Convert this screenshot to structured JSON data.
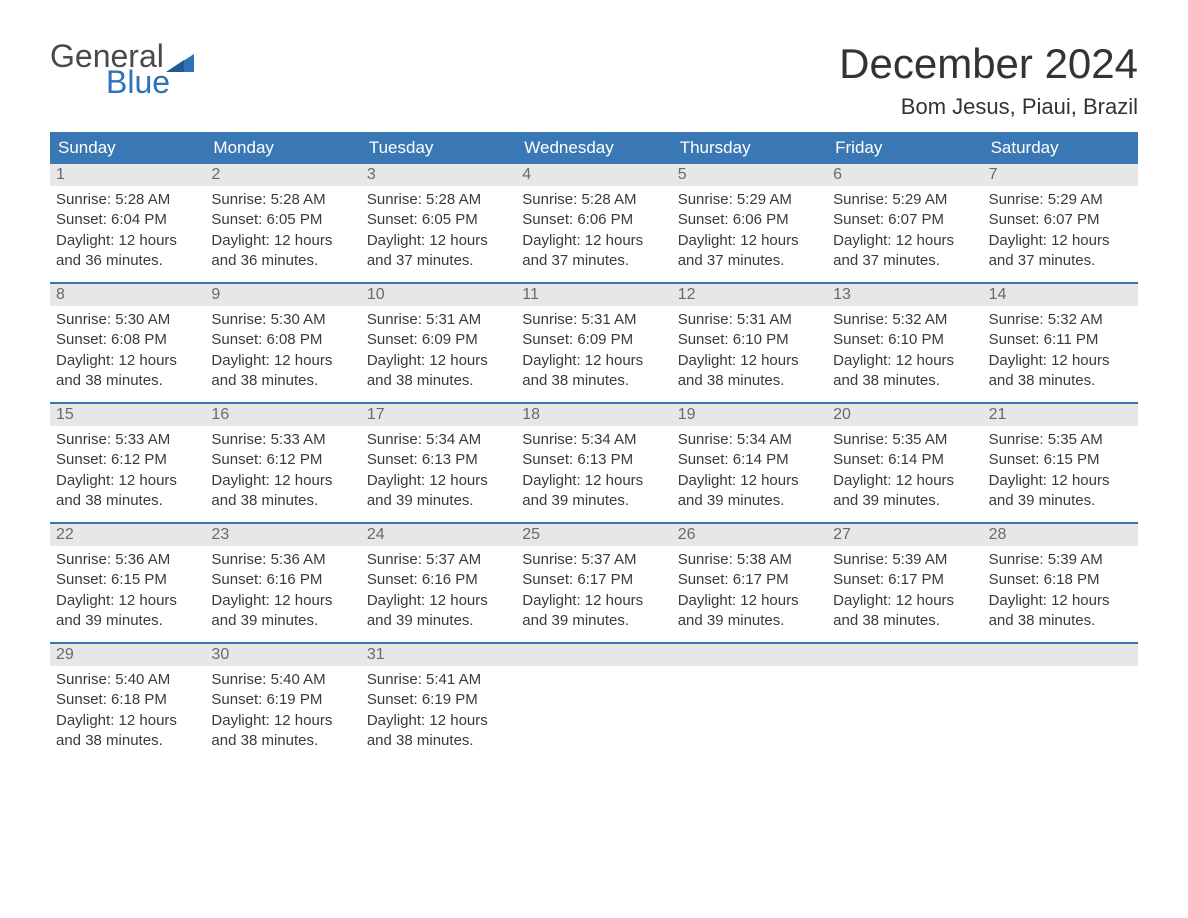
{
  "logo": {
    "general": "General",
    "blue": "Blue",
    "flag_color": "#2f72b8"
  },
  "title": "December 2024",
  "location": "Bom Jesus, Piaui, Brazil",
  "colors": {
    "header_bg": "#3a78b5",
    "header_text": "#ffffff",
    "daynum_bg": "#e7e7e7",
    "daynum_text": "#6a6a6a",
    "body_text": "#3a3a3a",
    "week_divider": "#3a78b5",
    "page_bg": "#ffffff",
    "logo_gray": "#4a4a4a",
    "logo_blue": "#2f72b8"
  },
  "fonts": {
    "title_size_pt": 32,
    "location_size_pt": 16,
    "weekday_size_pt": 13,
    "daynum_size_pt": 12,
    "cell_text_size_pt": 11
  },
  "weekdays": [
    "Sunday",
    "Monday",
    "Tuesday",
    "Wednesday",
    "Thursday",
    "Friday",
    "Saturday"
  ],
  "weeks": [
    [
      {
        "num": "1",
        "sunrise": "5:28 AM",
        "sunset": "6:04 PM",
        "daylight": "12 hours and 36 minutes."
      },
      {
        "num": "2",
        "sunrise": "5:28 AM",
        "sunset": "6:05 PM",
        "daylight": "12 hours and 36 minutes."
      },
      {
        "num": "3",
        "sunrise": "5:28 AM",
        "sunset": "6:05 PM",
        "daylight": "12 hours and 37 minutes."
      },
      {
        "num": "4",
        "sunrise": "5:28 AM",
        "sunset": "6:06 PM",
        "daylight": "12 hours and 37 minutes."
      },
      {
        "num": "5",
        "sunrise": "5:29 AM",
        "sunset": "6:06 PM",
        "daylight": "12 hours and 37 minutes."
      },
      {
        "num": "6",
        "sunrise": "5:29 AM",
        "sunset": "6:07 PM",
        "daylight": "12 hours and 37 minutes."
      },
      {
        "num": "7",
        "sunrise": "5:29 AM",
        "sunset": "6:07 PM",
        "daylight": "12 hours and 37 minutes."
      }
    ],
    [
      {
        "num": "8",
        "sunrise": "5:30 AM",
        "sunset": "6:08 PM",
        "daylight": "12 hours and 38 minutes."
      },
      {
        "num": "9",
        "sunrise": "5:30 AM",
        "sunset": "6:08 PM",
        "daylight": "12 hours and 38 minutes."
      },
      {
        "num": "10",
        "sunrise": "5:31 AM",
        "sunset": "6:09 PM",
        "daylight": "12 hours and 38 minutes."
      },
      {
        "num": "11",
        "sunrise": "5:31 AM",
        "sunset": "6:09 PM",
        "daylight": "12 hours and 38 minutes."
      },
      {
        "num": "12",
        "sunrise": "5:31 AM",
        "sunset": "6:10 PM",
        "daylight": "12 hours and 38 minutes."
      },
      {
        "num": "13",
        "sunrise": "5:32 AM",
        "sunset": "6:10 PM",
        "daylight": "12 hours and 38 minutes."
      },
      {
        "num": "14",
        "sunrise": "5:32 AM",
        "sunset": "6:11 PM",
        "daylight": "12 hours and 38 minutes."
      }
    ],
    [
      {
        "num": "15",
        "sunrise": "5:33 AM",
        "sunset": "6:12 PM",
        "daylight": "12 hours and 38 minutes."
      },
      {
        "num": "16",
        "sunrise": "5:33 AM",
        "sunset": "6:12 PM",
        "daylight": "12 hours and 38 minutes."
      },
      {
        "num": "17",
        "sunrise": "5:34 AM",
        "sunset": "6:13 PM",
        "daylight": "12 hours and 39 minutes."
      },
      {
        "num": "18",
        "sunrise": "5:34 AM",
        "sunset": "6:13 PM",
        "daylight": "12 hours and 39 minutes."
      },
      {
        "num": "19",
        "sunrise": "5:34 AM",
        "sunset": "6:14 PM",
        "daylight": "12 hours and 39 minutes."
      },
      {
        "num": "20",
        "sunrise": "5:35 AM",
        "sunset": "6:14 PM",
        "daylight": "12 hours and 39 minutes."
      },
      {
        "num": "21",
        "sunrise": "5:35 AM",
        "sunset": "6:15 PM",
        "daylight": "12 hours and 39 minutes."
      }
    ],
    [
      {
        "num": "22",
        "sunrise": "5:36 AM",
        "sunset": "6:15 PM",
        "daylight": "12 hours and 39 minutes."
      },
      {
        "num": "23",
        "sunrise": "5:36 AM",
        "sunset": "6:16 PM",
        "daylight": "12 hours and 39 minutes."
      },
      {
        "num": "24",
        "sunrise": "5:37 AM",
        "sunset": "6:16 PM",
        "daylight": "12 hours and 39 minutes."
      },
      {
        "num": "25",
        "sunrise": "5:37 AM",
        "sunset": "6:17 PM",
        "daylight": "12 hours and 39 minutes."
      },
      {
        "num": "26",
        "sunrise": "5:38 AM",
        "sunset": "6:17 PM",
        "daylight": "12 hours and 39 minutes."
      },
      {
        "num": "27",
        "sunrise": "5:39 AM",
        "sunset": "6:17 PM",
        "daylight": "12 hours and 38 minutes."
      },
      {
        "num": "28",
        "sunrise": "5:39 AM",
        "sunset": "6:18 PM",
        "daylight": "12 hours and 38 minutes."
      }
    ],
    [
      {
        "num": "29",
        "sunrise": "5:40 AM",
        "sunset": "6:18 PM",
        "daylight": "12 hours and 38 minutes."
      },
      {
        "num": "30",
        "sunrise": "5:40 AM",
        "sunset": "6:19 PM",
        "daylight": "12 hours and 38 minutes."
      },
      {
        "num": "31",
        "sunrise": "5:41 AM",
        "sunset": "6:19 PM",
        "daylight": "12 hours and 38 minutes."
      },
      {
        "empty": true
      },
      {
        "empty": true
      },
      {
        "empty": true
      },
      {
        "empty": true
      }
    ]
  ],
  "labels": {
    "sunrise": "Sunrise:",
    "sunset": "Sunset:",
    "daylight": "Daylight:"
  }
}
